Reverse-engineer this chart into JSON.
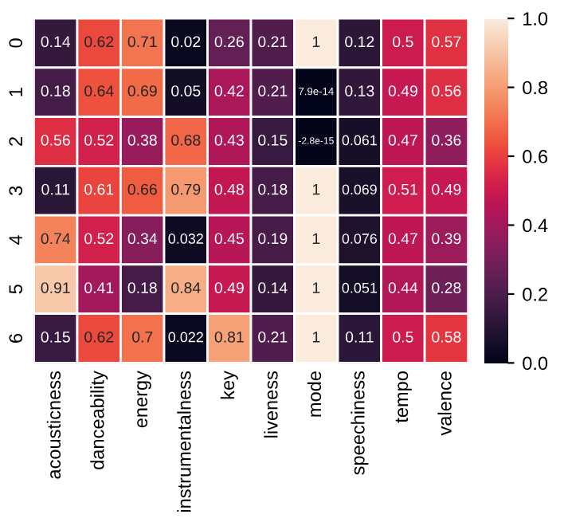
{
  "chart_data": {
    "type": "heatmap",
    "categories": [
      "acousticness",
      "danceability",
      "energy",
      "instrumentalness",
      "key",
      "liveness",
      "mode",
      "speechiness",
      "tempo",
      "valence"
    ],
    "y_categories": [
      "0",
      "1",
      "2",
      "3",
      "4",
      "5",
      "6"
    ],
    "cells": [
      [
        0.14,
        0.62,
        0.71,
        0.02,
        0.26,
        0.21,
        1,
        0.12,
        0.5,
        0.57
      ],
      [
        0.18,
        0.64,
        0.69,
        0.05,
        0.42,
        0.21,
        7.9e-14,
        0.13,
        0.49,
        0.56
      ],
      [
        0.56,
        0.52,
        0.38,
        0.68,
        0.43,
        0.15,
        -2.8e-15,
        0.061,
        0.47,
        0.36
      ],
      [
        0.11,
        0.61,
        0.66,
        0.79,
        0.48,
        0.18,
        1,
        0.069,
        0.51,
        0.49
      ],
      [
        0.74,
        0.52,
        0.34,
        0.032,
        0.45,
        0.19,
        1,
        0.076,
        0.47,
        0.39
      ],
      [
        0.91,
        0.41,
        0.18,
        0.84,
        0.49,
        0.14,
        1,
        0.051,
        0.44,
        0.28
      ],
      [
        0.15,
        0.62,
        0.7,
        0.022,
        0.81,
        0.21,
        1,
        0.11,
        0.5,
        0.58
      ]
    ],
    "cell_labels": [
      [
        "0.14",
        "0.62",
        "0.71",
        "0.02",
        "0.26",
        "0.21",
        "1",
        "0.12",
        "0.5",
        "0.57"
      ],
      [
        "0.18",
        "0.64",
        "0.69",
        "0.05",
        "0.42",
        "0.21",
        "7.9e-14",
        "0.13",
        "0.49",
        "0.56"
      ],
      [
        "0.56",
        "0.52",
        "0.38",
        "0.68",
        "0.43",
        "0.15",
        "-2.8e-15",
        "0.061",
        "0.47",
        "0.36"
      ],
      [
        "0.11",
        "0.61",
        "0.66",
        "0.79",
        "0.48",
        "0.18",
        "1",
        "0.069",
        "0.51",
        "0.49"
      ],
      [
        "0.74",
        "0.52",
        "0.34",
        "0.032",
        "0.45",
        "0.19",
        "1",
        "0.076",
        "0.47",
        "0.39"
      ],
      [
        "0.91",
        "0.41",
        "0.18",
        "0.84",
        "0.49",
        "0.14",
        "1",
        "0.051",
        "0.44",
        "0.28"
      ],
      [
        "0.15",
        "0.62",
        "0.7",
        "0.022",
        "0.81",
        "0.21",
        "1",
        "0.11",
        "0.5",
        "0.58"
      ]
    ],
    "clim": [
      0,
      1
    ],
    "cticks": [
      {
        "value": 0,
        "label": "0.0"
      },
      {
        "value": 0.2,
        "label": "0.2"
      },
      {
        "value": 0.4,
        "label": "0.4"
      },
      {
        "value": 0.6,
        "label": "0.6"
      },
      {
        "value": 0.8,
        "label": "0.8"
      },
      {
        "value": 1,
        "label": "1.0"
      }
    ]
  }
}
